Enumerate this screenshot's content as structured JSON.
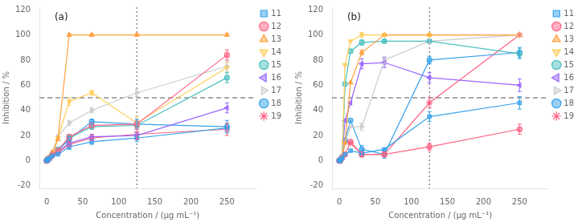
{
  "chart_data": [
    {
      "type": "line",
      "title": "(a)",
      "xlabel": "Concentration / (μg mL⁻¹)",
      "ylabel": "Inhibition / %",
      "x": [
        0,
        0.5,
        1,
        2,
        4,
        8,
        15.6,
        31.25,
        62.5,
        125,
        250
      ],
      "series": [
        {
          "name": "11",
          "marker": "square",
          "values": [
            0,
            0,
            1,
            1,
            2,
            4,
            5,
            11,
            15,
            18,
            26
          ],
          "err": [
            0,
            0,
            0,
            0,
            0,
            0,
            0,
            2,
            2,
            3,
            3
          ]
        },
        {
          "name": "12",
          "marker": "circle",
          "values": [
            0,
            0,
            1,
            1,
            2,
            5,
            8,
            19,
            28,
            29,
            84
          ],
          "err": [
            0,
            0,
            0,
            0,
            0,
            0,
            0,
            2,
            2,
            3,
            4
          ]
        },
        {
          "name": "13",
          "marker": "triangle-up",
          "values": [
            0,
            0,
            1,
            2,
            3,
            6,
            17,
            100,
            100,
            100,
            100
          ],
          "err": [
            0,
            0,
            0,
            0,
            0,
            0,
            0,
            1,
            1,
            1,
            1
          ]
        },
        {
          "name": "14",
          "marker": "triangle-down",
          "values": [
            0,
            0,
            1,
            1,
            3,
            7,
            18,
            47,
            54,
            30,
            74
          ],
          "err": [
            0,
            0,
            0,
            0,
            0,
            0,
            0,
            3,
            2,
            5,
            4
          ]
        },
        {
          "name": "15",
          "marker": "circle",
          "values": [
            0,
            0,
            1,
            1,
            2,
            5,
            9,
            18,
            27,
            28,
            66
          ],
          "err": [
            0,
            0,
            0,
            0,
            0,
            0,
            0,
            2,
            2,
            3,
            4
          ]
        },
        {
          "name": "16",
          "marker": "triangle-left",
          "values": [
            0,
            0,
            1,
            1,
            2,
            4,
            7,
            14,
            19,
            20,
            42
          ],
          "err": [
            0,
            0,
            0,
            0,
            0,
            0,
            0,
            2,
            2,
            3,
            4
          ]
        },
        {
          "name": "17",
          "marker": "triangle-right",
          "values": [
            0,
            0,
            1,
            1,
            3,
            7,
            19,
            30,
            40,
            54,
            75
          ],
          "err": [
            0,
            0,
            0,
            0,
            0,
            0,
            0,
            2,
            2,
            3,
            4
          ]
        },
        {
          "name": "18",
          "marker": "circle",
          "values": [
            0,
            0,
            1,
            1,
            2,
            5,
            8,
            17,
            31,
            29,
            27
          ],
          "err": [
            0,
            0,
            0,
            0,
            0,
            0,
            0,
            2,
            2,
            4,
            5
          ]
        },
        {
          "name": "19",
          "marker": "star",
          "values": [
            0,
            0,
            1,
            1,
            2,
            4,
            6,
            13,
            18,
            21,
            25
          ],
          "err": [
            0,
            0,
            0,
            0,
            0,
            0,
            0,
            2,
            2,
            4,
            5
          ]
        }
      ],
      "xlim": [
        -10,
        290
      ],
      "ylim": [
        -22,
        122
      ],
      "xticks": [
        0,
        50,
        100,
        150,
        200,
        250
      ],
      "yticks": [
        -20,
        0,
        20,
        40,
        60,
        80,
        100,
        120
      ],
      "vline": 125,
      "hline": 50,
      "grid": false,
      "legend": "right"
    },
    {
      "type": "line",
      "title": "(b)",
      "xlabel": "Concentration / (μg mL⁻¹)",
      "ylabel": "Inhibition / %",
      "x": [
        0,
        0.5,
        1,
        2,
        4,
        8,
        15.6,
        31.25,
        62.5,
        125,
        250
      ],
      "series": [
        {
          "name": "11",
          "marker": "square",
          "values": [
            0,
            0,
            0,
            1,
            2,
            5,
            8,
            6,
            9,
            35,
            46
          ],
          "err": [
            0,
            0,
            0,
            0,
            0,
            0,
            0,
            2,
            1,
            4,
            5
          ]
        },
        {
          "name": "12",
          "marker": "circle",
          "values": [
            0,
            0,
            0,
            1,
            2,
            5,
            15,
            5,
            5,
            11,
            25
          ],
          "err": [
            0,
            0,
            0,
            0,
            0,
            0,
            0,
            2,
            2,
            3,
            4
          ]
        },
        {
          "name": "13",
          "marker": "triangle-up",
          "values": [
            0,
            0,
            0,
            1,
            3,
            14,
            62,
            86,
            100,
            100,
            100
          ],
          "err": [
            0,
            0,
            0,
            0,
            0,
            0,
            0,
            2,
            1,
            1,
            1
          ]
        },
        {
          "name": "14",
          "marker": "triangle-down",
          "values": [
            0,
            0,
            0,
            1,
            3,
            76,
            95,
            100,
            100,
            100,
            100
          ],
          "err": [
            0,
            0,
            0,
            0,
            0,
            0,
            0,
            2,
            1,
            1,
            1
          ]
        },
        {
          "name": "15",
          "marker": "circle",
          "values": [
            0,
            0,
            0,
            1,
            3,
            61,
            87,
            94,
            95,
            95,
            85
          ],
          "err": [
            0,
            0,
            0,
            0,
            0,
            0,
            0,
            2,
            1,
            1,
            4
          ]
        },
        {
          "name": "16",
          "marker": "triangle-left",
          "values": [
            0,
            0,
            0,
            1,
            3,
            32,
            46,
            77,
            78,
            66,
            60
          ],
          "err": [
            0,
            0,
            0,
            0,
            0,
            0,
            0,
            4,
            4,
            4,
            5
          ]
        },
        {
          "name": "17",
          "marker": "triangle-right",
          "values": [
            0,
            0,
            0,
            1,
            3,
            14,
            27,
            27,
            80,
            95,
            100
          ],
          "err": [
            0,
            0,
            0,
            0,
            0,
            0,
            0,
            3,
            3,
            2,
            1
          ]
        },
        {
          "name": "18",
          "marker": "circle",
          "values": [
            0,
            0,
            0,
            1,
            3,
            16,
            32,
            9,
            5,
            80,
            86
          ],
          "err": [
            0,
            0,
            0,
            0,
            0,
            0,
            0,
            3,
            3,
            3,
            4
          ]
        },
        {
          "name": "19",
          "marker": "star",
          "values": [
            0,
            0,
            0,
            1,
            3,
            15,
            14,
            5,
            5,
            46,
            100
          ],
          "err": [
            0,
            0,
            0,
            0,
            0,
            0,
            0,
            2,
            2,
            4,
            1
          ]
        }
      ],
      "xlim": [
        -10,
        290
      ],
      "ylim": [
        -22,
        122
      ],
      "xticks": [
        0,
        50,
        100,
        150,
        200,
        250
      ],
      "yticks": [
        -20,
        0,
        20,
        40,
        60,
        80,
        100,
        120
      ],
      "vline": 125,
      "hline": 50,
      "grid": false,
      "legend": "right"
    }
  ]
}
